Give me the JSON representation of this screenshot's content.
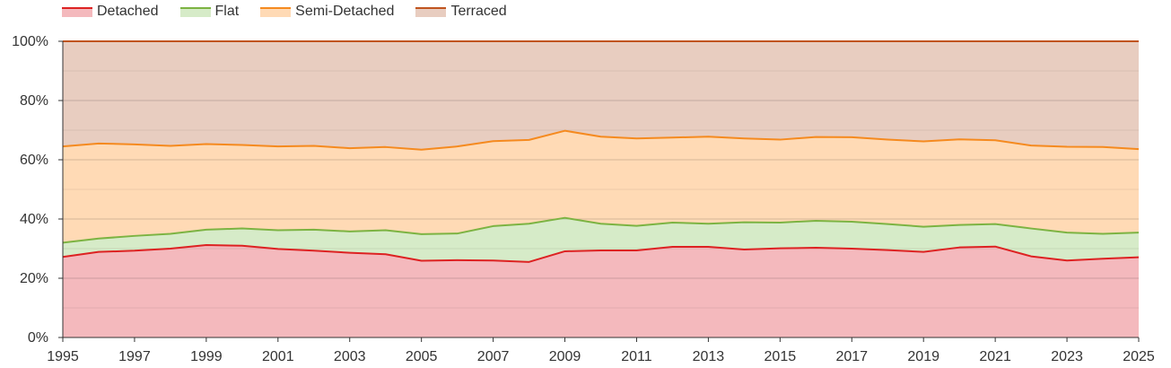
{
  "chart_data": {
    "type": "area",
    "stacked": true,
    "normalized": true,
    "x": [
      1995,
      1996,
      1997,
      1998,
      1999,
      2000,
      2001,
      2002,
      2003,
      2004,
      2005,
      2006,
      2007,
      2008,
      2009,
      2010,
      2011,
      2012,
      2013,
      2014,
      2015,
      2016,
      2017,
      2018,
      2019,
      2020,
      2021,
      2022,
      2023,
      2024,
      2025
    ],
    "xticks": [
      "1995",
      "1997",
      "1999",
      "2001",
      "2003",
      "2005",
      "2007",
      "2009",
      "2011",
      "2013",
      "2015",
      "2017",
      "2019",
      "2021",
      "2023",
      "2025"
    ],
    "yticks": [
      "0%",
      "20%",
      "40%",
      "60%",
      "80%",
      "100%"
    ],
    "ylim": [
      0,
      100
    ],
    "grid": true,
    "legend_position": "top-left",
    "series": [
      {
        "name": "Detached",
        "line_color": "#dd2222",
        "fill_color": "#f4b9bd",
        "values": [
          27.2,
          28.9,
          29.3,
          30.0,
          31.2,
          31.0,
          29.9,
          29.3,
          28.6,
          28.1,
          25.9,
          26.1,
          26.0,
          25.5,
          29.1,
          29.4,
          29.4,
          30.6,
          30.6,
          29.7,
          30.1,
          30.3,
          30.0,
          29.5,
          28.9,
          30.4,
          30.7,
          27.4,
          26.0,
          26.6,
          27.1
        ]
      },
      {
        "name": "Flat",
        "line_color": "#7cb342",
        "fill_color": "#d6ebc8",
        "values": [
          4.8,
          4.5,
          5.0,
          5.0,
          5.2,
          5.8,
          6.3,
          7.1,
          7.2,
          8.1,
          9.0,
          9.0,
          11.6,
          12.9,
          11.3,
          9.0,
          8.3,
          8.2,
          7.8,
          9.2,
          8.7,
          9.1,
          9.1,
          8.8,
          8.5,
          7.6,
          7.6,
          9.4,
          9.4,
          8.4,
          8.3
        ]
      },
      {
        "name": "Semi-Detached",
        "line_color": "#f58a1f",
        "fill_color": "#ffdab5",
        "values": [
          32.5,
          32.1,
          30.9,
          29.7,
          28.9,
          28.2,
          28.3,
          28.3,
          28.1,
          28.1,
          28.5,
          29.4,
          28.7,
          28.3,
          29.4,
          29.4,
          29.5,
          28.7,
          29.4,
          28.3,
          28.0,
          28.3,
          28.5,
          28.5,
          28.8,
          28.9,
          28.3,
          28.0,
          29.0,
          29.3,
          28.2
        ]
      },
      {
        "name": "Terraced",
        "line_color": "#c0541e",
        "fill_color": "#e8cdc0",
        "values": [
          35.5,
          34.5,
          34.8,
          35.3,
          34.7,
          35.0,
          35.5,
          35.3,
          36.1,
          35.7,
          36.6,
          35.5,
          33.7,
          33.3,
          30.2,
          32.2,
          32.8,
          32.5,
          32.2,
          32.8,
          33.2,
          32.3,
          32.4,
          33.2,
          33.8,
          33.1,
          33.4,
          35.2,
          35.6,
          35.7,
          36.4
        ]
      }
    ]
  }
}
